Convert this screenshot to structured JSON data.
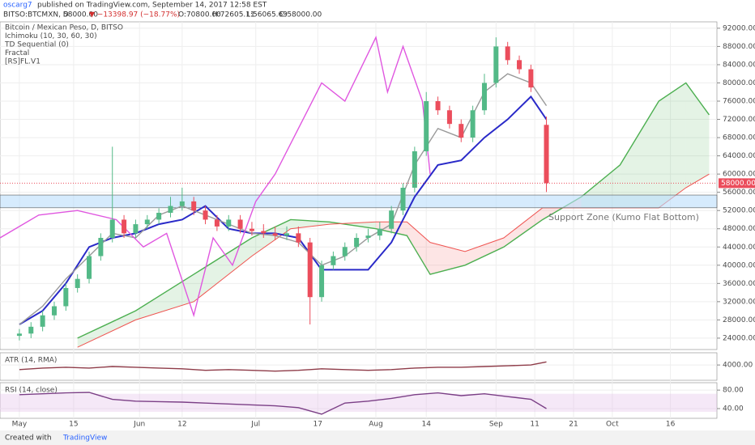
{
  "header": {
    "author": "oscarg7",
    "published": "published on TradingView.com, September 14, 2017 12:58 EST",
    "symbol": "BITSO:BTCMXN, D",
    "price": "58000.00",
    "change": "▼ −13398.97 (−18.77%)",
    "ohlc": [
      "O:70800.00",
      "H:72605.11",
      "L:56065.69",
      "C:58000.00"
    ]
  },
  "footer": {
    "created": "Created with",
    "brand": "TradingView"
  },
  "chart_data": [
    {
      "type": "candlestick",
      "legend": [
        "Bitcoin / Mexican Peso, D, BITSO",
        "Ichimoku (10, 30, 60, 30)",
        "TD Sequential (0)",
        "Fractal",
        "[RS]FL.V1"
      ],
      "xlim": [
        -5,
        180
      ],
      "xticks": [
        {
          "value": 0,
          "label": "May"
        },
        {
          "value": 14,
          "label": "15"
        },
        {
          "value": 31,
          "label": "Jun"
        },
        {
          "value": 42,
          "label": "12"
        },
        {
          "value": 61,
          "label": "Jul"
        },
        {
          "value": 77,
          "label": "17"
        },
        {
          "value": 92,
          "label": "Aug"
        },
        {
          "value": 105,
          "label": "14"
        },
        {
          "value": 123,
          "label": "Sep"
        },
        {
          "value": 133,
          "label": "11"
        },
        {
          "value": 143,
          "label": "21"
        },
        {
          "value": 153,
          "label": "Oct"
        },
        {
          "value": 168,
          "label": "16"
        }
      ],
      "ylim": [
        21500,
        93400
      ],
      "yticks": [
        {
          "value": 24000,
          "label": "24000.00"
        },
        {
          "value": 28000,
          "label": "28000.00"
        },
        {
          "value": 32000,
          "label": "32000.00"
        },
        {
          "value": 36000,
          "label": "36000.00"
        },
        {
          "value": 40000,
          "label": "40000.00"
        },
        {
          "value": 44000,
          "label": "44000.00"
        },
        {
          "value": 48000,
          "label": "48000.00"
        },
        {
          "value": 52000,
          "label": "52000.00"
        },
        {
          "value": 56000,
          "label": "56000.00"
        },
        {
          "value": 60000,
          "label": "60000.00"
        },
        {
          "value": 64000,
          "label": "64000.00"
        },
        {
          "value": 68000,
          "label": "68000.00"
        },
        {
          "value": 72000,
          "label": "72000.00"
        },
        {
          "value": 76000,
          "label": "76000.00"
        },
        {
          "value": 80000,
          "label": "80000.00"
        },
        {
          "value": 84000,
          "label": "84000.00"
        },
        {
          "value": 88000,
          "label": "88000.00"
        },
        {
          "value": 92000,
          "label": "92000.00"
        }
      ],
      "up_color": "#53b987",
      "down_color": "#eb4d5c",
      "x": [
        0,
        3,
        6,
        9,
        12,
        15,
        18,
        21,
        24,
        27,
        30,
        33,
        36,
        39,
        42,
        45,
        48,
        51,
        54,
        57,
        60,
        63,
        66,
        69,
        72,
        75,
        78,
        81,
        84,
        87,
        90,
        93,
        96,
        99,
        102,
        105,
        108,
        111,
        114,
        117,
        120,
        123,
        126,
        129,
        132,
        136
      ],
      "open": [
        24500,
        25000,
        26500,
        29000,
        31000,
        35000,
        37000,
        42000,
        46000,
        50000,
        47000,
        49000,
        50000,
        51500,
        53000,
        54000,
        52000,
        50000,
        48500,
        50000,
        48000,
        47500,
        47000,
        46500,
        47000,
        45000,
        33000,
        40000,
        42000,
        44000,
        46000,
        46500,
        48000,
        52000,
        57000,
        65000,
        76000,
        74000,
        71000,
        68000,
        74000,
        80000,
        88000,
        85000,
        83000,
        70800
      ],
      "high": [
        26000,
        27500,
        30000,
        32000,
        36000,
        38000,
        43000,
        47000,
        66000,
        51000,
        50000,
        51000,
        52500,
        55000,
        57000,
        55000,
        53000,
        51000,
        51000,
        51000,
        49500,
        49000,
        48500,
        48500,
        48500,
        46000,
        41000,
        43000,
        45000,
        47000,
        48000,
        49500,
        53000,
        58000,
        66000,
        78000,
        77000,
        75000,
        72000,
        75000,
        82000,
        90000,
        89000,
        86000,
        84000,
        72605.11
      ],
      "low": [
        23500,
        24000,
        25500,
        28000,
        30000,
        34000,
        36000,
        41000,
        45000,
        46000,
        46000,
        48000,
        49000,
        50500,
        52000,
        51000,
        49000,
        47500,
        47500,
        47000,
        46500,
        46000,
        45500,
        45500,
        44000,
        27000,
        32000,
        39000,
        41000,
        43000,
        45000,
        45500,
        47000,
        51000,
        56000,
        64000,
        73000,
        70000,
        67000,
        67000,
        73000,
        79000,
        84000,
        82000,
        78000,
        56065.69
      ],
      "close": [
        25000,
        26500,
        29000,
        31000,
        35000,
        37000,
        42000,
        46000,
        50000,
        47000,
        49000,
        50000,
        51500,
        53000,
        54000,
        52000,
        50000,
        48500,
        50000,
        48000,
        47500,
        47000,
        46500,
        47000,
        45000,
        33000,
        40000,
        42000,
        44000,
        46000,
        46500,
        48000,
        52000,
        57000,
        65000,
        76000,
        74000,
        71000,
        68000,
        74000,
        80000,
        88000,
        85000,
        83000,
        79000,
        58000
      ],
      "lines": [
        {
          "color": "#2929c8",
          "x": [
            0,
            6,
            12,
            18,
            24,
            30,
            36,
            42,
            48,
            54,
            60,
            66,
            72,
            78,
            84,
            90,
            96,
            102,
            108,
            114,
            120,
            126,
            132,
            136
          ],
          "values": [
            27000,
            30000,
            36000,
            44000,
            46000,
            47000,
            49000,
            50000,
            53000,
            48000,
            47000,
            47000,
            46000,
            39000,
            39000,
            39000,
            45000,
            55000,
            62000,
            63000,
            68000,
            72000,
            77000,
            72000
          ]
        },
        {
          "color": "#999999",
          "x": [
            0,
            6,
            12,
            18,
            24,
            30,
            36,
            42,
            48,
            54,
            60,
            66,
            72,
            78,
            84,
            90,
            96,
            102,
            108,
            114,
            120,
            126,
            132,
            136
          ],
          "values": [
            27000,
            31000,
            37000,
            42000,
            47000,
            46000,
            51000,
            53000,
            51000,
            49000,
            47000,
            46500,
            45000,
            40000,
            42000,
            46000,
            49000,
            62000,
            70000,
            68000,
            78000,
            82000,
            80000,
            75000
          ]
        },
        {
          "color": "#e057e0",
          "x": [
            -5,
            5,
            15,
            25,
            32,
            38,
            45,
            50,
            55,
            61,
            66,
            72,
            78,
            84,
            92,
            95,
            99,
            104,
            106
          ],
          "values": [
            46000,
            51000,
            52000,
            50000,
            44000,
            47000,
            29000,
            46000,
            40000,
            54000,
            60000,
            70000,
            80000,
            76000,
            90000,
            78000,
            88000,
            76000,
            60000
          ]
        }
      ],
      "cloud": {
        "x": [
          15,
          30,
          45,
          60,
          70,
          80,
          92,
          100,
          106,
          115,
          125,
          135,
          145,
          155,
          165,
          172,
          178
        ],
        "span_a": [
          24000,
          30000,
          38000,
          46000,
          50000,
          49500,
          48000,
          46500,
          38000,
          40000,
          44000,
          50000,
          55000,
          62000,
          76000,
          80000,
          73000
        ],
        "span_b": [
          22000,
          28000,
          32000,
          42000,
          48000,
          49000,
          49500,
          49500,
          45000,
          43000,
          46000,
          52600,
          52600,
          52600,
          52600,
          57000,
          60000
        ],
        "up_color": "#4caf50",
        "down_color": "#ef5350"
      },
      "zone": [
        52600,
        55400
      ],
      "annotation": "Support Zone (Kumo Flat Bottom)",
      "last_price": {
        "value": 58000,
        "label": "58000.00"
      }
    },
    {
      "type": "line",
      "title": "ATR (14, RMA)",
      "color": "#8e3b48",
      "x": [
        0,
        6,
        12,
        18,
        24,
        30,
        36,
        42,
        48,
        54,
        60,
        66,
        72,
        78,
        84,
        90,
        96,
        102,
        108,
        114,
        120,
        126,
        132,
        136
      ],
      "values": [
        3400,
        3600,
        3700,
        3600,
        3800,
        3700,
        3600,
        3500,
        3300,
        3400,
        3300,
        3200,
        3300,
        3500,
        3400,
        3300,
        3400,
        3600,
        3700,
        3700,
        3800,
        3900,
        4000,
        4400
      ],
      "ylim": [
        2000,
        5600
      ],
      "yticks": [
        {
          "value": 4000,
          "label": "4000.00"
        }
      ]
    },
    {
      "type": "line",
      "title": "RSI (14, close)",
      "color": "#7b3f86",
      "band": [
        33,
        72
      ],
      "x": [
        0,
        6,
        12,
        18,
        24,
        30,
        36,
        42,
        48,
        54,
        60,
        66,
        72,
        78,
        84,
        90,
        96,
        102,
        108,
        114,
        120,
        126,
        132,
        136
      ],
      "values": [
        70,
        72,
        74,
        75,
        60,
        56,
        55,
        54,
        52,
        50,
        48,
        46,
        42,
        28,
        52,
        56,
        62,
        70,
        74,
        68,
        72,
        66,
        60,
        40
      ],
      "ylim": [
        19,
        96
      ],
      "yticks": [
        {
          "value": 80,
          "label": "80.00"
        },
        {
          "value": 40,
          "label": "40.00"
        }
      ]
    }
  ]
}
